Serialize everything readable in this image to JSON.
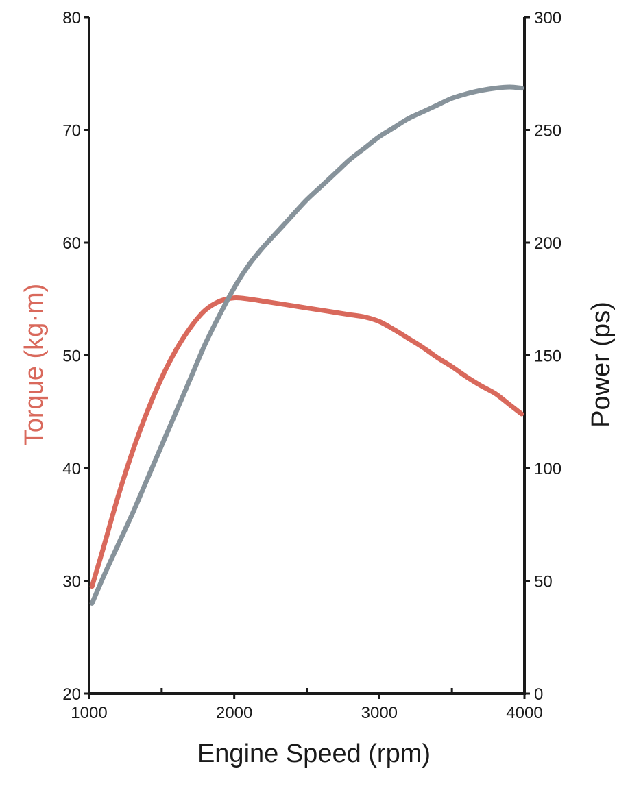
{
  "chart_data": {
    "type": "line",
    "xlabel": "Engine Speed (rpm)",
    "ylabel_left": "Torque (kg·m)",
    "ylabel_right": "Power (ps)",
    "xlim": [
      1000,
      4000
    ],
    "ylim_left": [
      20,
      80
    ],
    "ylim_right": [
      0,
      300
    ],
    "x_ticks": [
      1000,
      2000,
      3000,
      4000
    ],
    "x_minor_ticks": [
      1500,
      2500,
      3500
    ],
    "y_left_ticks": [
      20,
      30,
      40,
      50,
      60,
      70,
      80
    ],
    "y_right_ticks": [
      0,
      50,
      100,
      150,
      200,
      250,
      300
    ],
    "grid": false,
    "colors": {
      "torque": "#d9695c",
      "power": "#87939b",
      "axis": "#1a1a1a"
    },
    "series": [
      {
        "key": "torque",
        "axis": "left",
        "x": [
          1020,
          1100,
          1200,
          1300,
          1400,
          1500,
          1600,
          1700,
          1800,
          1900,
          2000,
          2100,
          2200,
          2300,
          2400,
          2500,
          2600,
          2700,
          2800,
          2900,
          3000,
          3100,
          3200,
          3300,
          3400,
          3500,
          3600,
          3700,
          3800,
          3900,
          3980
        ],
        "values": [
          29.5,
          33.0,
          37.5,
          41.5,
          45.0,
          48.0,
          50.5,
          52.5,
          54.0,
          54.8,
          55.1,
          55.0,
          54.8,
          54.6,
          54.4,
          54.2,
          54.0,
          53.8,
          53.6,
          53.4,
          53.0,
          52.3,
          51.5,
          50.7,
          49.8,
          49.0,
          48.1,
          47.3,
          46.6,
          45.6,
          44.8
        ]
      },
      {
        "key": "power",
        "axis": "right",
        "x": [
          1020,
          1100,
          1200,
          1300,
          1400,
          1500,
          1600,
          1700,
          1800,
          1900,
          2000,
          2100,
          2200,
          2300,
          2400,
          2500,
          2600,
          2700,
          2800,
          2900,
          3000,
          3100,
          3200,
          3300,
          3400,
          3500,
          3600,
          3700,
          3800,
          3900,
          3980
        ],
        "values": [
          40,
          52,
          66,
          80,
          95,
          110,
          125,
          140,
          155,
          168,
          180,
          190,
          198,
          205,
          212,
          219,
          225,
          231,
          237,
          242,
          247,
          251,
          255,
          258,
          261,
          264,
          266,
          267.5,
          268.5,
          269,
          268.5
        ]
      }
    ]
  }
}
